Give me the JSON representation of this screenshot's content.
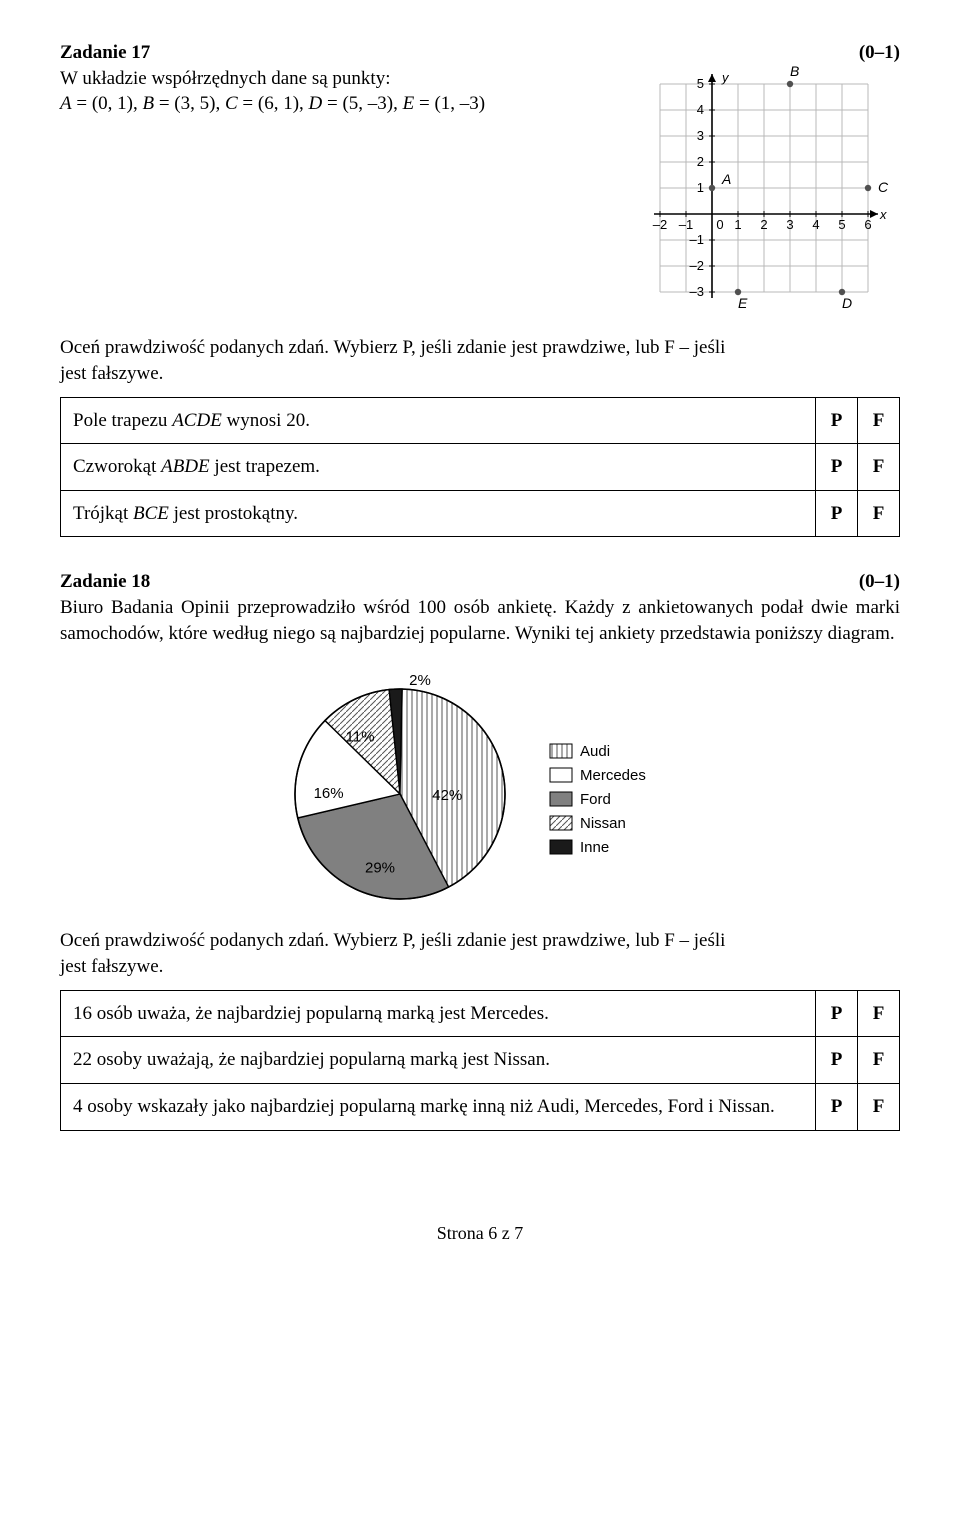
{
  "task17": {
    "title": "Zadanie 17",
    "points": "(0–1)",
    "intro_l1": "W układzie współrzędnych dane są punkty:",
    "intro_l2": "A = (0, 1), B = (3, 5), C = (6, 1), D = (5, –3), E = (1, –3)",
    "pf_intro_a": "Oceń prawdziwość podanych zdań. Wybierz P, jeśli zdanie jest prawdziwe, lub F – jeśli",
    "pf_intro_b": "jest fałszywe.",
    "stmt1": "Pole trapezu ACDE wynosi 20.",
    "stmt2": "Czworokąt ABDE jest trapezem.",
    "stmt3": "Trójkąt BCE jest prostokątny.",
    "P": "P",
    "F": "F",
    "grid": {
      "cell": 26,
      "xmin": -2,
      "xmax": 6,
      "ymin": -3,
      "ymax": 5,
      "xticks": [
        "–2",
        "–1",
        "0",
        "1",
        "2",
        "3",
        "4",
        "5",
        "6"
      ],
      "yticks_pos": [
        "5",
        "4",
        "3",
        "2",
        "1"
      ],
      "yticks_neg": [
        "–1",
        "–2",
        "–3"
      ],
      "axis_x": "x",
      "axis_y": "y",
      "labels": {
        "A": "A",
        "B": "B",
        "C": "C",
        "D": "D",
        "E": "E"
      },
      "points": {
        "A": [
          0,
          1
        ],
        "B": [
          3,
          5
        ],
        "C": [
          6,
          1
        ],
        "D": [
          5,
          -3
        ],
        "E": [
          1,
          -3
        ]
      },
      "grid_color": "#b8b8b8",
      "axis_color": "#000000",
      "point_color": "#505050",
      "font_size": 13
    }
  },
  "task18": {
    "title": "Zadanie 18",
    "points": "(0–1)",
    "body": "Biuro Badania Opinii przeprowadziło wśród 100 osób ankietę. Każdy z ankietowanych podał dwie marki samochodów, które według niego są najbardziej popularne. Wyniki tej ankiety przedstawia poniższy diagram.",
    "pie": {
      "radius": 105,
      "stroke": "#000000",
      "background": "#ffffff",
      "font_size": 15,
      "slices": [
        {
          "label": "Audi",
          "value": 42,
          "fill": "url(#hatch-v)",
          "text": "42%"
        },
        {
          "label": "Mercedes",
          "value": 16,
          "fill": "#ffffff",
          "text": "16%"
        },
        {
          "label": "Ford",
          "value": 29,
          "fill": "#808080",
          "text": "29%"
        },
        {
          "label": "Nissan",
          "value": 11,
          "fill": "url(#hatch-d)",
          "text": "11%"
        },
        {
          "label": "Inne",
          "value": 2,
          "fill": "#1a1a1a",
          "text": "2%"
        }
      ],
      "legend": [
        "Audi",
        "Mercedes",
        "Ford",
        "Nissan",
        "Inne"
      ]
    },
    "pf_intro_a": "Oceń prawdziwość podanych zdań. Wybierz P, jeśli zdanie jest prawdziwe, lub F – jeśli",
    "pf_intro_b": "jest fałszywe.",
    "stmt1": "16 osób uważa, że najbardziej popularną marką jest Mercedes.",
    "stmt2": "22 osoby uważają, że najbardziej popularną marką jest Nissan.",
    "stmt3": "4 osoby wskazały jako najbardziej popularną markę inną niż Audi, Mercedes, Ford i Nissan.",
    "P": "P",
    "F": "F"
  },
  "footer": "Strona 6 z 7"
}
